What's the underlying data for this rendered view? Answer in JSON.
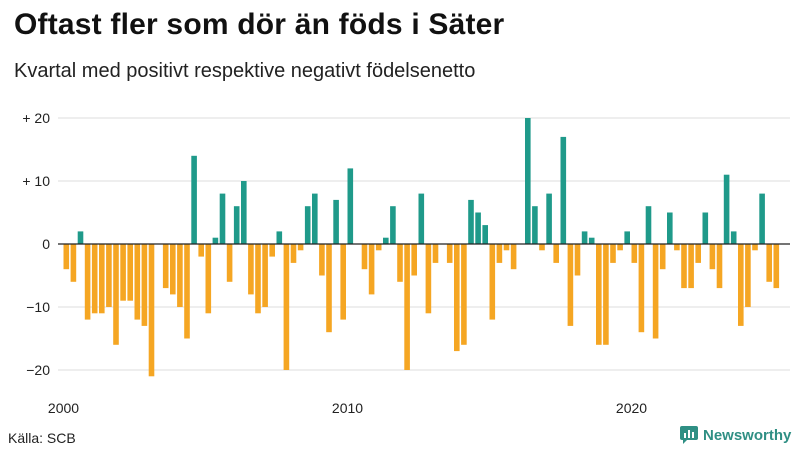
{
  "title": "Oftast fler som dör än föds i Säter",
  "subtitle": "Kvartal med positivt respektive negativt födelsenetto",
  "source": "Källa: SCB",
  "brand": {
    "name": "Newsworthy",
    "icon": "newsworthy-logo-icon"
  },
  "colors": {
    "positive": "#1f9a8a",
    "negative": "#f5a623",
    "grid": "#dcdcdc",
    "zero_line": "#222222"
  },
  "chart_data": {
    "type": "bar",
    "title": "Oftast fler som dör än föds i Säter",
    "subtitle": "Kvartal med positivt respektive negativt födelsenetto",
    "xlabel": "",
    "ylabel": "",
    "ylim": [
      -22,
      21
    ],
    "grid": true,
    "legend": "none",
    "y_ticks": [
      {
        "value": 20,
        "label": "+ 20"
      },
      {
        "value": 10,
        "label": "+ 10"
      },
      {
        "value": 0,
        "label": "0"
      },
      {
        "value": -10,
        "label": "−10"
      },
      {
        "value": -20,
        "label": "−20"
      }
    ],
    "x_ticks": [
      {
        "value": 2000,
        "label": "2000"
      },
      {
        "value": 2010,
        "label": "2010"
      },
      {
        "value": 2020,
        "label": "2020"
      }
    ],
    "x_start": 2000,
    "quarters_per_year": 4,
    "values": [
      -4,
      -6,
      2,
      -12,
      -11,
      -11,
      -10,
      -16,
      -9,
      -9,
      -12,
      -13,
      -21,
      0,
      -7,
      -8,
      -10,
      -15,
      14,
      -2,
      -11,
      1,
      8,
      -6,
      6,
      10,
      -8,
      -11,
      -10,
      -2,
      2,
      -20,
      -3,
      -1,
      6,
      8,
      -5,
      -14,
      7,
      -12,
      12,
      0,
      -4,
      -8,
      -1,
      1,
      6,
      -6,
      -20,
      -5,
      8,
      -11,
      -3,
      0,
      -3,
      -17,
      -16,
      7,
      5,
      3,
      -12,
      -3,
      -1,
      -4,
      0,
      20,
      6,
      -1,
      8,
      -3,
      17,
      -13,
      -5,
      2,
      1,
      -16,
      -16,
      -3,
      -1,
      2,
      -3,
      -14,
      6,
      -15,
      -4,
      5,
      -1,
      -7,
      -7,
      -3,
      5,
      -4,
      -7,
      11,
      2,
      -13,
      -10,
      -1,
      8,
      -6,
      -7
    ]
  }
}
